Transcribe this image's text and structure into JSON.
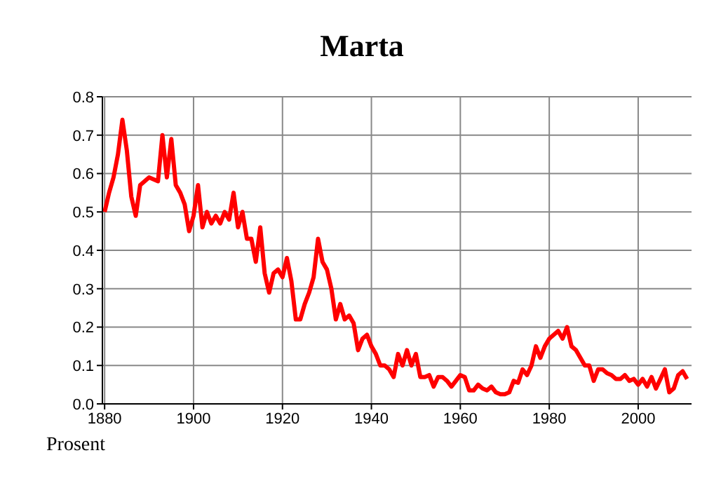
{
  "chart_data": {
    "type": "line",
    "title": "Marta",
    "annotations": [
      "Prosent"
    ],
    "x": [
      1880,
      1881,
      1882,
      1883,
      1884,
      1885,
      1886,
      1887,
      1888,
      1889,
      1890,
      1891,
      1892,
      1893,
      1894,
      1895,
      1896,
      1897,
      1898,
      1899,
      1900,
      1901,
      1902,
      1903,
      1904,
      1905,
      1906,
      1907,
      1908,
      1909,
      1910,
      1911,
      1912,
      1913,
      1914,
      1915,
      1916,
      1917,
      1918,
      1919,
      1920,
      1921,
      1922,
      1923,
      1924,
      1925,
      1926,
      1927,
      1928,
      1929,
      1930,
      1931,
      1932,
      1933,
      1934,
      1935,
      1936,
      1937,
      1938,
      1939,
      1940,
      1941,
      1942,
      1943,
      1944,
      1945,
      1946,
      1947,
      1948,
      1949,
      1950,
      1951,
      1952,
      1953,
      1954,
      1955,
      1956,
      1957,
      1958,
      1959,
      1960,
      1961,
      1962,
      1963,
      1964,
      1965,
      1966,
      1967,
      1968,
      1969,
      1970,
      1971,
      1972,
      1973,
      1974,
      1975,
      1976,
      1977,
      1978,
      1979,
      1980,
      1981,
      1982,
      1983,
      1984,
      1985,
      1986,
      1987,
      1988,
      1989,
      1990,
      1991,
      1992,
      1993,
      1994,
      1995,
      1996,
      1997,
      1998,
      1999,
      2000,
      2001,
      2002,
      2003,
      2004,
      2005,
      2006,
      2007,
      2008,
      2009,
      2010,
      2011
    ],
    "series": [
      {
        "color": "#ff0000",
        "values": [
          0.5,
          0.55,
          0.59,
          0.65,
          0.74,
          0.66,
          0.54,
          0.49,
          0.57,
          0.58,
          0.59,
          0.585,
          0.58,
          0.7,
          0.59,
          0.69,
          0.57,
          0.55,
          0.52,
          0.45,
          0.49,
          0.57,
          0.46,
          0.5,
          0.47,
          0.49,
          0.47,
          0.5,
          0.48,
          0.55,
          0.46,
          0.5,
          0.43,
          0.43,
          0.37,
          0.46,
          0.34,
          0.29,
          0.34,
          0.35,
          0.33,
          0.38,
          0.32,
          0.22,
          0.22,
          0.26,
          0.29,
          0.33,
          0.43,
          0.37,
          0.35,
          0.3,
          0.22,
          0.26,
          0.22,
          0.23,
          0.21,
          0.14,
          0.17,
          0.18,
          0.15,
          0.13,
          0.1,
          0.1,
          0.09,
          0.07,
          0.13,
          0.1,
          0.14,
          0.1,
          0.13,
          0.07,
          0.07,
          0.075,
          0.045,
          0.07,
          0.07,
          0.06,
          0.045,
          0.06,
          0.075,
          0.07,
          0.035,
          0.035,
          0.05,
          0.04,
          0.035,
          0.045,
          0.03,
          0.025,
          0.025,
          0.03,
          0.06,
          0.055,
          0.09,
          0.075,
          0.1,
          0.15,
          0.12,
          0.15,
          0.17,
          0.18,
          0.19,
          0.17,
          0.2,
          0.15,
          0.14,
          0.12,
          0.1,
          0.1,
          0.06,
          0.09,
          0.09,
          0.08,
          0.075,
          0.065,
          0.065,
          0.075,
          0.06,
          0.065,
          0.05,
          0.065,
          0.045,
          0.07,
          0.04,
          0.065,
          0.09,
          0.03,
          0.04,
          0.075,
          0.085,
          0.065
        ]
      }
    ],
    "xlim": [
      1879.5,
      2012
    ],
    "xticks": [
      1880,
      1900,
      1920,
      1940,
      1960,
      1980,
      2000
    ],
    "ylim": [
      0,
      0.8
    ],
    "yticks": [
      {
        "value": 0,
        "label": "0.0"
      },
      0.1,
      0.2,
      0.3,
      0.4,
      0.5,
      0.6,
      0.7,
      0.8
    ],
    "grid": true,
    "marker": "none",
    "line_style": "solid"
  }
}
